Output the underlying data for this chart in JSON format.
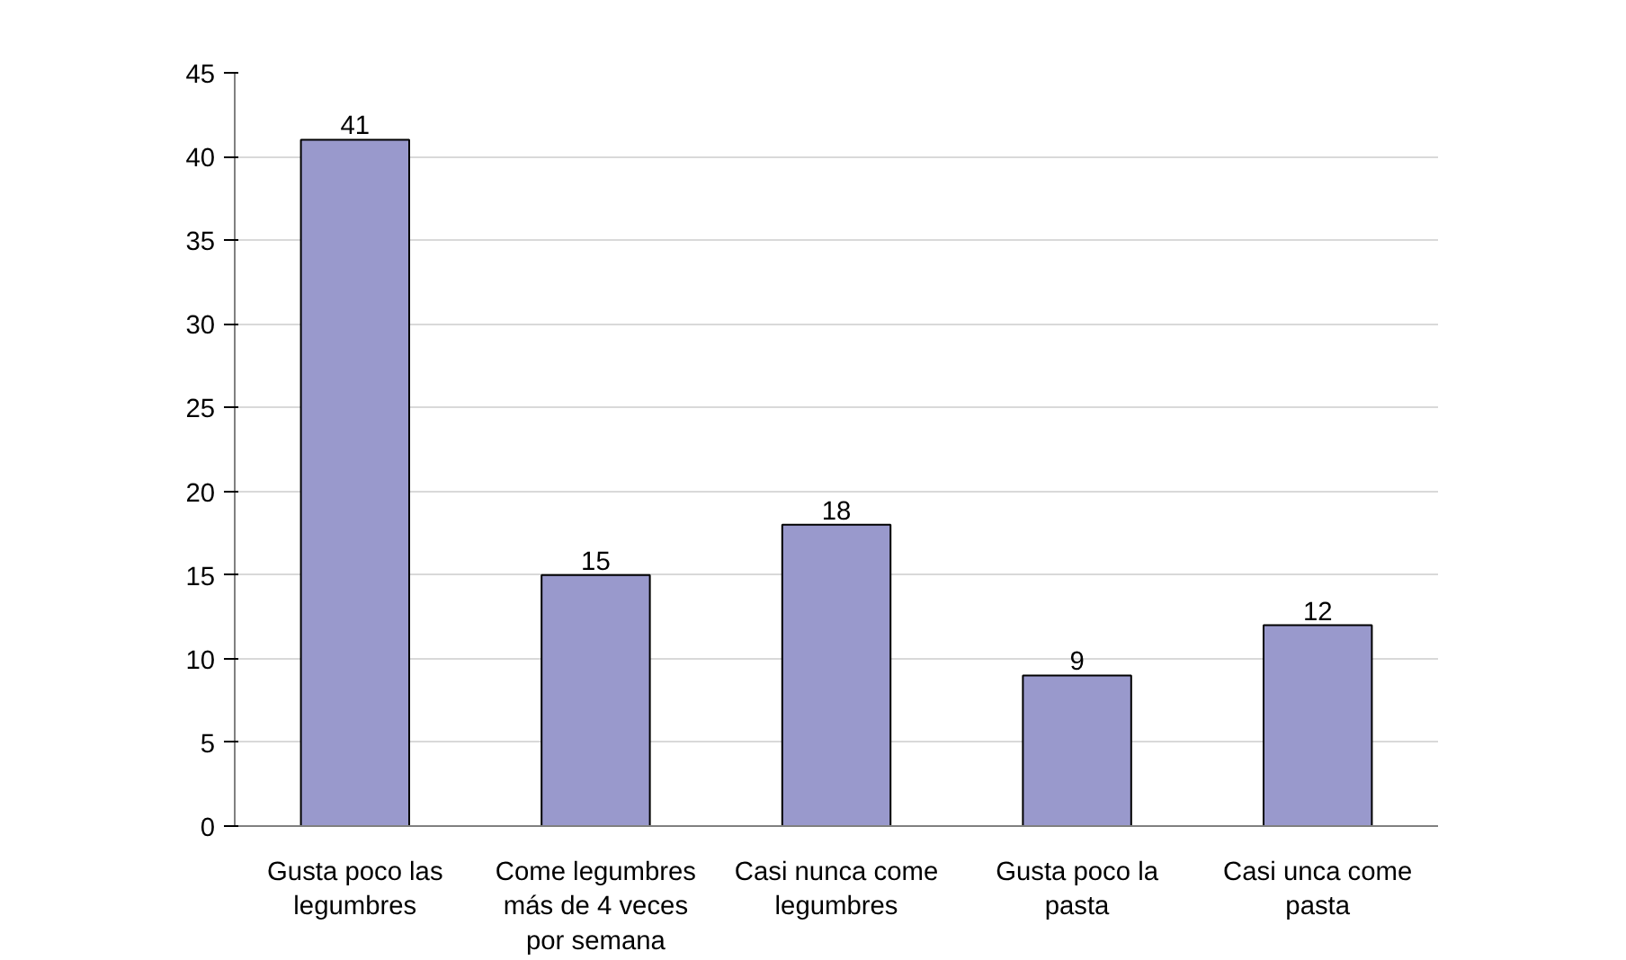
{
  "chart_data": {
    "type": "bar",
    "categories": [
      "Gusta poco las legumbres",
      "Come legumbres más de 4 veces por semana",
      "Casi nunca come legumbres",
      "Gusta poco la pasta",
      "Casi unca come pasta"
    ],
    "values": [
      41,
      15,
      18,
      9,
      12
    ],
    "color": "#9999cc",
    "ylim": [
      0,
      45
    ],
    "yticks": [
      0,
      5,
      10,
      15,
      20,
      25,
      30,
      35,
      40,
      45
    ],
    "grid": "y",
    "data_labels": true
  }
}
